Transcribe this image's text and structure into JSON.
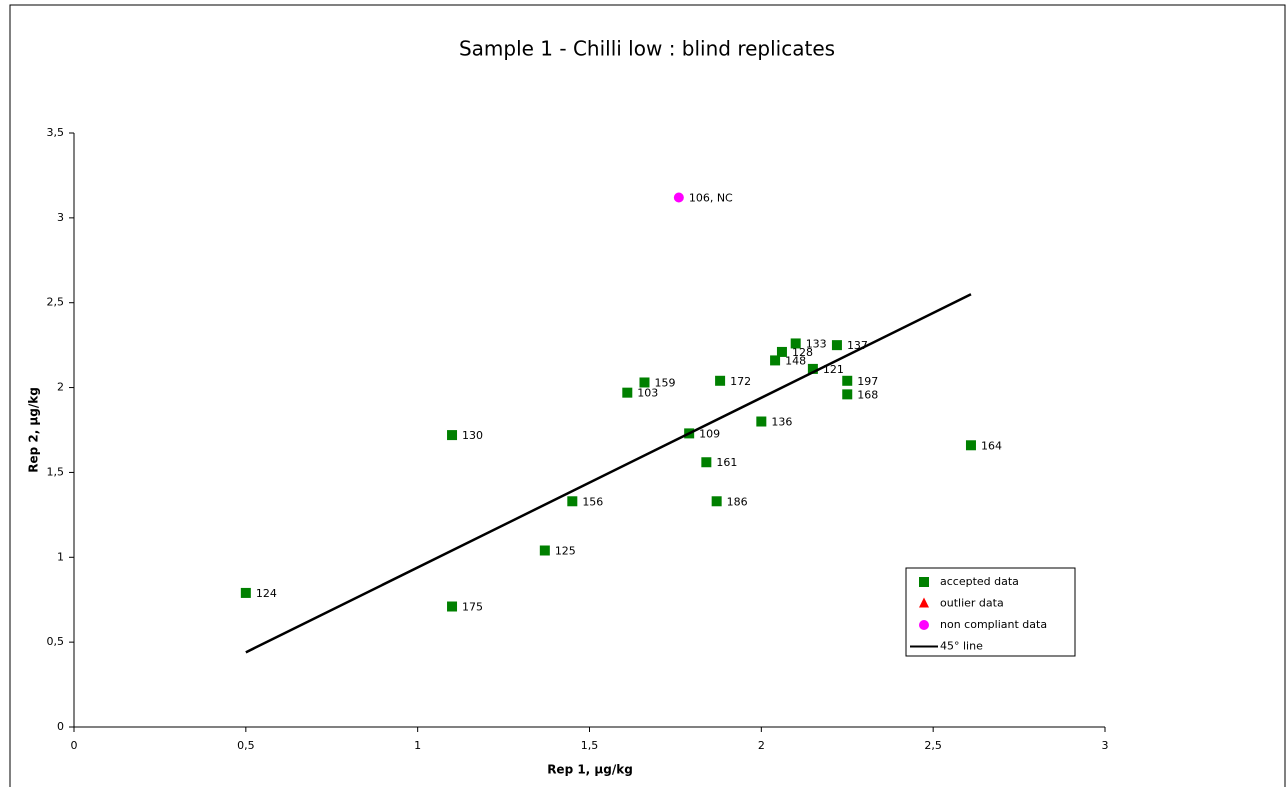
{
  "chart_data": {
    "type": "scatter",
    "title": "Sample 1 - Chilli low : blind replicates",
    "xlabel": "Rep 1,  µg/kg",
    "ylabel": "Rep 2,  µg/kg",
    "xlim": [
      0,
      3
    ],
    "ylim": [
      0,
      3.5
    ],
    "xticks": [
      0,
      {
        "value": 0.5,
        "label": "0,5"
      },
      1,
      {
        "value": 1.5,
        "label": "1,5"
      },
      2,
      {
        "value": 2.5,
        "label": "2,5"
      },
      3
    ],
    "yticks": [
      0,
      {
        "value": 0.5,
        "label": "0,5"
      },
      1,
      {
        "value": 1.5,
        "label": "1,5"
      },
      2,
      {
        "value": 2.5,
        "label": "2,5"
      },
      3,
      {
        "value": 3.5,
        "label": "3,5"
      }
    ],
    "legend": "lower-right",
    "series": [
      {
        "name": "accepted data",
        "marker": "square",
        "color": "#008000",
        "labels": [
          "124",
          "175",
          "130",
          "125",
          "156",
          "103",
          "159",
          "109",
          "161",
          "186",
          "172",
          "136",
          "148",
          "128",
          "133",
          "121",
          "137",
          "197",
          "168",
          "164"
        ],
        "x": [
          0.5,
          1.1,
          1.1,
          1.37,
          1.45,
          1.61,
          1.66,
          1.79,
          1.84,
          1.87,
          1.88,
          2.0,
          2.04,
          2.06,
          2.1,
          2.15,
          2.22,
          2.25,
          2.25,
          2.61
        ],
        "values": [
          0.79,
          0.71,
          1.72,
          1.04,
          1.33,
          1.97,
          2.03,
          1.73,
          1.56,
          1.33,
          2.04,
          1.8,
          2.16,
          2.21,
          2.26,
          2.11,
          2.25,
          2.04,
          1.96,
          1.66
        ]
      },
      {
        "name": "outlier data",
        "marker": "triangle",
        "color": "#ff0000",
        "labels": [],
        "x": [],
        "values": []
      },
      {
        "name": "non compliant data",
        "marker": "circle",
        "color": "#ff00ff",
        "labels": [
          "106, NC"
        ],
        "x": [
          1.76
        ],
        "values": [
          3.12
        ]
      },
      {
        "name": "45° line",
        "marker": "line",
        "color": "#000000",
        "x": [
          0.5,
          2.61
        ],
        "values": [
          0.44,
          2.55
        ]
      }
    ]
  }
}
